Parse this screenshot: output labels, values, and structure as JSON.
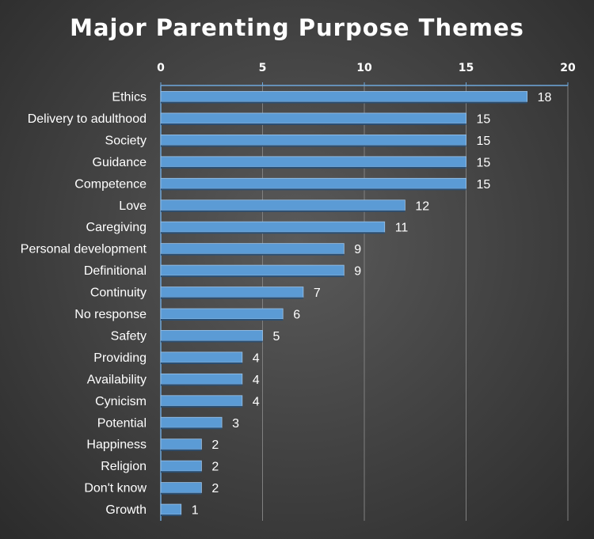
{
  "chart_data": {
    "type": "bar",
    "orientation": "horizontal",
    "title": "Major Parenting Purpose Themes",
    "categories": [
      "Ethics",
      "Delivery to adulthood",
      "Society",
      "Guidance",
      "Competence",
      "Love",
      "Caregiving",
      "Personal development",
      "Definitional",
      "Continuity",
      "No response",
      "Safety",
      "Providing",
      "Availability",
      "Cynicism",
      "Potential",
      "Happiness",
      "Religion",
      "Don't know",
      "Growth"
    ],
    "values": [
      18,
      15,
      15,
      15,
      15,
      12,
      11,
      9,
      9,
      7,
      6,
      5,
      4,
      4,
      4,
      3,
      2,
      2,
      2,
      1
    ],
    "xlim": [
      0,
      20
    ],
    "xticks": [
      0,
      5,
      10,
      15,
      20
    ],
    "x_axis_position": "top",
    "grid": "vertical",
    "data_labels": true,
    "legend": "none",
    "colors": {
      "bar": "#5b9bd5",
      "bar_edge": "#9cc3e8",
      "axis": "#6fa8dc",
      "grid": "#808080"
    }
  }
}
